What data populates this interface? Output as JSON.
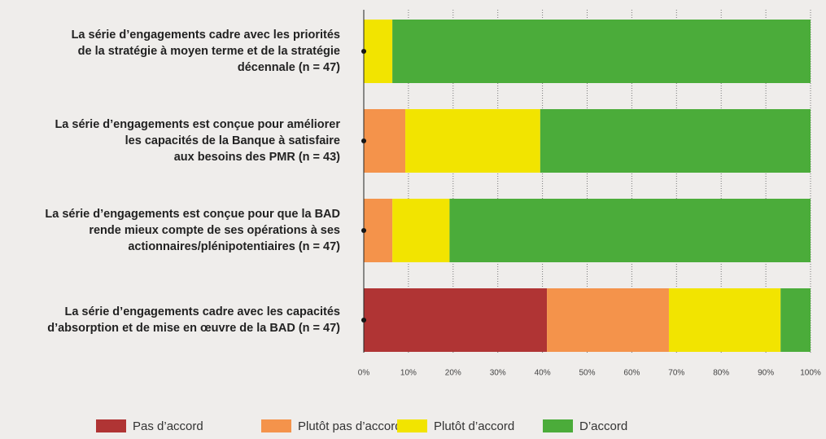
{
  "chart_data": {
    "type": "stacked-barh",
    "categories": [
      [
        "La série d’engagements cadre avec les priorités",
        "de la stratégie à moyen terme et de la stratégie",
        "décennale (n = 47)"
      ],
      [
        "La série d’engagements est conçue pour améliorer",
        "les capacités de la Banque à satisfaire",
        "aux besoins des PMR (n = 43)"
      ],
      [
        "La série d’engagements est conçue pour que la BAD",
        "rende mieux compte de ses opérations à ses",
        "actionnaires/plénipotentiaires (n = 47)"
      ],
      [
        "La série d’engagements cadre avec les capacités",
        "d’absorption et de mise en œuvre de la BAD (n = 47)"
      ]
    ],
    "series": [
      {
        "name": "Pas d’accord",
        "color": "#b03434",
        "values": [
          0,
          0,
          0,
          41
        ]
      },
      {
        "name": "Plutôt pas d’accord",
        "color": "#f4934b",
        "values": [
          0,
          9.3,
          6.4,
          27.3
        ]
      },
      {
        "name": "Plutôt d’accord",
        "color": "#f2e400",
        "values": [
          6.4,
          30.2,
          12.8,
          25
        ]
      },
      {
        "name": "D’accord",
        "color": "#4bac3a",
        "values": [
          93.6,
          60.5,
          80.8,
          6.7
        ]
      }
    ],
    "xlim": [
      0,
      100
    ],
    "xticks": [
      {
        "value": 0,
        "label": "0%"
      },
      {
        "value": 10,
        "label": "10%"
      },
      {
        "value": 20,
        "label": "20%"
      },
      {
        "value": 30,
        "label": "30%"
      },
      {
        "value": 40,
        "label": "40%"
      },
      {
        "value": 50,
        "label": "50%"
      },
      {
        "value": 60,
        "label": "60%"
      },
      {
        "value": 70,
        "label": "70%"
      },
      {
        "value": 80,
        "label": "80%"
      },
      {
        "value": 90,
        "label": "90%"
      },
      {
        "value": 100,
        "label": "100%"
      }
    ],
    "grid": true,
    "legend": "bottom"
  }
}
